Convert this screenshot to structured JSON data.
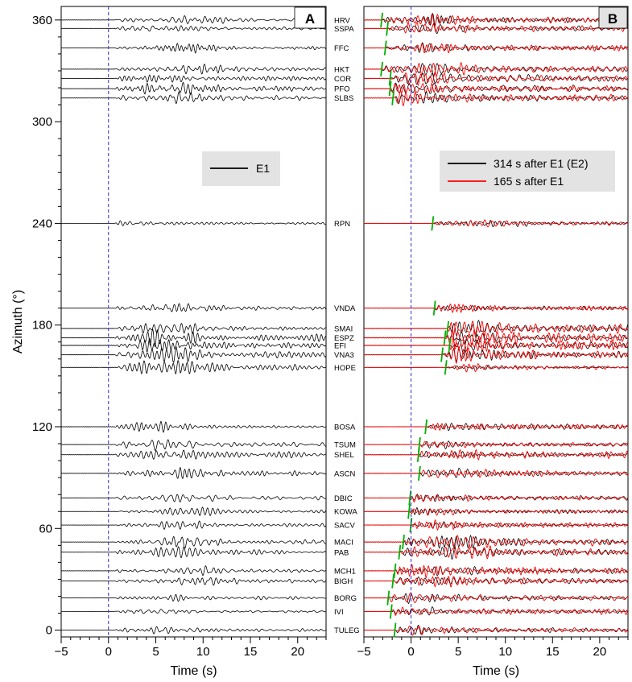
{
  "colors": {
    "trace_black": "#000000",
    "trace_red": "#ff0000",
    "onset_marker": "#00b000",
    "zero_line": "#2b2bd8",
    "legend_bg": "#e3e3e3"
  },
  "chart_data": [
    {
      "type": "line",
      "panel": "A",
      "panel_label": "A",
      "xlabel": "Time (s)",
      "ylabel": "Azimuth (°)",
      "xlim": [
        -5,
        23
      ],
      "ylim": [
        -4,
        368
      ],
      "xticks": [
        -5,
        0,
        5,
        10,
        15,
        20
      ],
      "xtick_labels": [
        "−5",
        "0",
        "5",
        "10",
        "15",
        "20"
      ],
      "yticks": [
        0,
        60,
        120,
        180,
        240,
        300,
        360
      ],
      "ytick_labels": [
        "0",
        "60",
        "120",
        "180",
        "240",
        "300",
        "360"
      ],
      "zero_line_x": 0,
      "legend": {
        "position": "top-right",
        "entries": [
          {
            "label": "E1",
            "color": "#000000"
          }
        ]
      },
      "series": [
        {
          "name": "E1",
          "color": "#000000"
        }
      ]
    },
    {
      "type": "line",
      "panel": "B",
      "panel_label": "B",
      "xlabel": "Time (s)",
      "ylabel": "",
      "xlim": [
        -5,
        23
      ],
      "ylim": [
        -4,
        368
      ],
      "xticks": [
        -5,
        0,
        5,
        10,
        15,
        20
      ],
      "xtick_labels": [
        "−5",
        "0",
        "5",
        "10",
        "15",
        "20"
      ],
      "zero_line_x": 0,
      "legend": {
        "position": "top-right",
        "entries": [
          {
            "label": "314 s after E1 (E2)",
            "color": "#000000"
          },
          {
            "label": "165 s after E1",
            "color": "#ff0000"
          }
        ]
      },
      "series": [
        {
          "name": "314 s after E1 (E2)",
          "color": "#000000"
        },
        {
          "name": "165 s after E1",
          "color": "#ff0000"
        }
      ]
    }
  ],
  "stations": [
    {
      "name": "HRV",
      "azimuth": 360.0,
      "onset_b": -3.2,
      "amp_a": 0.55,
      "amp_b": 0.7,
      "env_a": 9,
      "env_b": 1
    },
    {
      "name": "SSPA",
      "azimuth": 355.0,
      "onset_b": -2.6,
      "amp_a": 0.5,
      "amp_b": 0.6,
      "env_a": 6,
      "env_b": 1
    },
    {
      "name": "FFC",
      "azimuth": 343.5,
      "onset_b": -2.8,
      "amp_a": 0.45,
      "amp_b": 0.55,
      "env_a": 8,
      "env_b": 2
    },
    {
      "name": "HKT",
      "azimuth": 331.0,
      "onset_b": -3.2,
      "amp_a": 0.55,
      "amp_b": 0.75,
      "env_a": 10,
      "env_b": 3
    },
    {
      "name": "COR",
      "azimuth": 325.5,
      "onset_b": -2.3,
      "amp_a": 0.6,
      "amp_b": 0.8,
      "env_a": 7,
      "env_b": 0.5
    },
    {
      "name": "PFO",
      "azimuth": 319.5,
      "onset_b": -2.3,
      "amp_a": 0.65,
      "amp_b": 0.9,
      "env_a": 7,
      "env_b": 0
    },
    {
      "name": "SLBS",
      "azimuth": 314.0,
      "onset_b": -2.0,
      "amp_a": 0.65,
      "amp_b": 0.85,
      "env_a": 8,
      "env_b": 0
    },
    {
      "name": "RPN",
      "azimuth": 240.0,
      "onset_b": 2.2,
      "amp_a": 0.35,
      "amp_b": 0.45,
      "env_a": 3,
      "env_b": 8
    },
    {
      "name": "VNDA",
      "azimuth": 190.0,
      "onset_b": 2.4,
      "amp_a": 0.6,
      "amp_b": 0.45,
      "env_a": 7,
      "env_b": 3
    },
    {
      "name": "SMAI",
      "azimuth": 178.0,
      "onset_b": 3.8,
      "amp_a": 0.7,
      "amp_b": 0.9,
      "env_a": 6.5,
      "env_b": 5.5
    },
    {
      "name": "ESPZ",
      "azimuth": 172.5,
      "onset_b": 3.5,
      "amp_a": 0.8,
      "amp_b": 1.0,
      "env_a": 6.5,
      "env_b": 5.5
    },
    {
      "name": "EFI",
      "azimuth": 168.0,
      "onset_b": 4.0,
      "amp_a": 0.9,
      "amp_b": 0.9,
      "env_a": 6.5,
      "env_b": 5.5
    },
    {
      "name": "VNA3",
      "azimuth": 162.5,
      "onset_b": 3.2,
      "amp_a": 0.8,
      "amp_b": 0.8,
      "env_a": 6.5,
      "env_b": 5.5
    },
    {
      "name": "HOPE",
      "azimuth": 155.0,
      "onset_b": 3.6,
      "amp_a": 0.75,
      "amp_b": 0.4,
      "env_a": 6.5,
      "env_b": 7
    },
    {
      "name": "BOSA",
      "azimuth": 120.0,
      "onset_b": 1.5,
      "amp_a": 0.7,
      "amp_b": 0.55,
      "env_a": 5,
      "env_b": 4
    },
    {
      "name": "TSUM",
      "azimuth": 109.5,
      "onset_b": 0.8,
      "amp_a": 0.6,
      "amp_b": 0.5,
      "env_a": 6,
      "env_b": 3
    },
    {
      "name": "SHEL",
      "azimuth": 103.5,
      "onset_b": 0.7,
      "amp_a": 0.7,
      "amp_b": 0.55,
      "env_a": 7,
      "env_b": 3
    },
    {
      "name": "ASCN",
      "azimuth": 92.5,
      "onset_b": 0.8,
      "amp_a": 0.75,
      "amp_b": 0.55,
      "env_a": 9,
      "env_b": 4
    },
    {
      "name": "DBIC",
      "azimuth": 78.0,
      "onset_b": -0.2,
      "amp_a": 0.6,
      "amp_b": 0.5,
      "env_a": 8,
      "env_b": 2
    },
    {
      "name": "KOWA",
      "azimuth": 70.0,
      "onset_b": -0.3,
      "amp_a": 0.45,
      "amp_b": 0.45,
      "env_a": 8,
      "env_b": 2
    },
    {
      "name": "SACV",
      "azimuth": 62.0,
      "onset_b": -0.1,
      "amp_a": 0.45,
      "amp_b": 0.45,
      "env_a": 8,
      "env_b": 2
    },
    {
      "name": "MACI",
      "azimuth": 52.0,
      "onset_b": -0.9,
      "amp_a": 0.55,
      "amp_b": 0.8,
      "env_a": 8,
      "env_b": 5
    },
    {
      "name": "PAB",
      "azimuth": 46.0,
      "onset_b": -1.3,
      "amp_a": 0.55,
      "amp_b": 0.8,
      "env_a": 8,
      "env_b": 5
    },
    {
      "name": "MCH1",
      "azimuth": 35.0,
      "onset_b": -1.8,
      "amp_a": 0.5,
      "amp_b": 0.65,
      "env_a": 10,
      "env_b": 3
    },
    {
      "name": "BIGH",
      "azimuth": 29.0,
      "onset_b": -2.0,
      "amp_a": 0.4,
      "amp_b": 0.6,
      "env_a": 10,
      "env_b": 3
    },
    {
      "name": "BORG",
      "azimuth": 19.0,
      "onset_b": -2.5,
      "amp_a": 0.45,
      "amp_b": 0.6,
      "env_a": 6,
      "env_b": 0
    },
    {
      "name": "IVI",
      "azimuth": 11.0,
      "onset_b": -2.2,
      "amp_a": 0.35,
      "amp_b": 0.6,
      "env_a": 5,
      "env_b": 0
    },
    {
      "name": "TULEG",
      "azimuth": 0.0,
      "onset_b": -1.8,
      "amp_a": 0.4,
      "amp_b": 0.55,
      "env_a": 6,
      "env_b": 1
    }
  ]
}
